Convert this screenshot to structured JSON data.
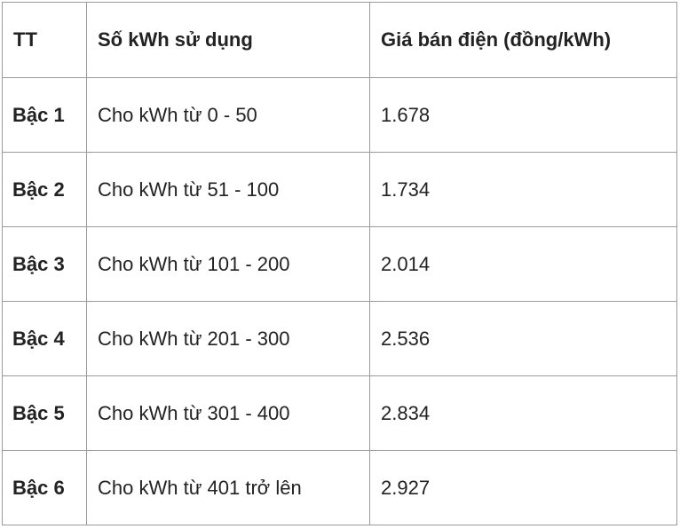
{
  "table": {
    "headers": [
      "TT",
      "Số kWh sử dụng",
      "Giá bán điện (đồng/kWh)"
    ],
    "rows": [
      {
        "tier": "Bậc 1",
        "usage": "Cho kWh từ 0 - 50",
        "price": "1.678"
      },
      {
        "tier": "Bậc 2",
        "usage": "Cho kWh từ 51 - 100",
        "price": "1.734"
      },
      {
        "tier": "Bậc 3",
        "usage": "Cho kWh từ 101 - 200",
        "price": "2.014"
      },
      {
        "tier": "Bậc 4",
        "usage": "Cho kWh từ 201 - 300",
        "price": "2.536"
      },
      {
        "tier": "Bậc 5",
        "usage": "Cho kWh từ 301 - 400",
        "price": "2.834"
      },
      {
        "tier": "Bậc 6",
        "usage": "Cho kWh từ 401 trở lên",
        "price": "2.927"
      }
    ]
  }
}
